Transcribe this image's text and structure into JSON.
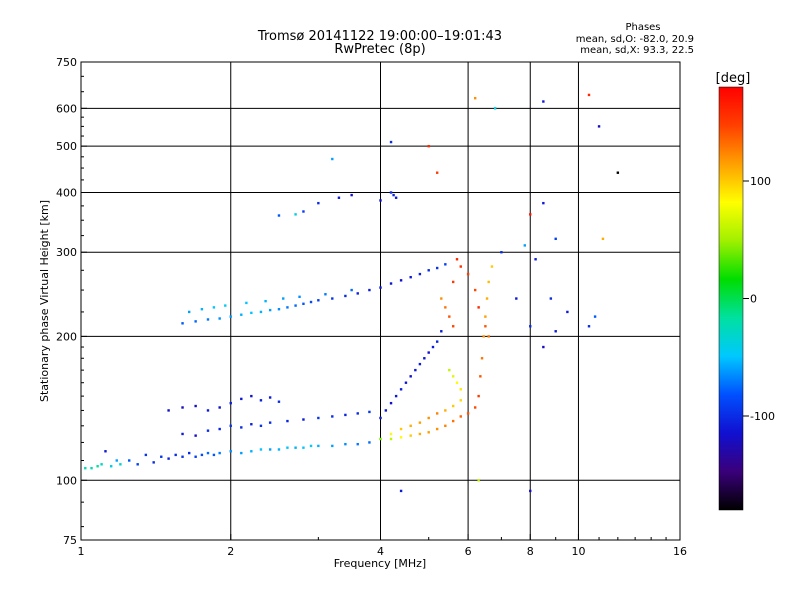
{
  "chart_data": {
    "type": "scatter",
    "title": "Tromsø 20141122 19:00:00–19:01:43",
    "subtitle": "RwPretec (8p)",
    "xlabel": "Frequency [MHz]",
    "ylabel": "Stationary phase Virtual Height [km]",
    "x_scale": "log",
    "y_scale": "log",
    "xlim": [
      1,
      16
    ],
    "ylim": [
      75,
      750
    ],
    "x_ticks": [
      "1",
      "2",
      "4",
      "6",
      "8",
      "10",
      "16"
    ],
    "x_tick_values": [
      1,
      2,
      4,
      6,
      8,
      10,
      16
    ],
    "y_ticks": [
      "75",
      "100",
      "200",
      "300",
      "400",
      "500",
      "600",
      "750"
    ],
    "y_tick_values": [
      75,
      100,
      200,
      300,
      400,
      500,
      600,
      750
    ],
    "grid": true,
    "info_box": {
      "heading": "Phases",
      "line1": "mean, sd,O: -82.0, 20.9",
      "line2": "mean, sd,X: 93.3, 22.5"
    },
    "colorbar": {
      "label": "[deg]",
      "ticks": [
        "100",
        "0",
        "-100"
      ],
      "tick_values": [
        100,
        0,
        -100
      ],
      "range": [
        -180,
        180
      ]
    },
    "color_stops": [
      "#000000",
      "#3a007a",
      "#1010d0",
      "#0050ff",
      "#00c8ff",
      "#00e0a0",
      "#00dd00",
      "#a0f000",
      "#ffff00",
      "#ffa000",
      "#ff4000",
      "#ff0000"
    ],
    "points": [
      [
        1.02,
        106,
        -20
      ],
      [
        1.05,
        106,
        -25
      ],
      [
        1.08,
        107,
        -15
      ],
      [
        1.1,
        108,
        -30
      ],
      [
        1.12,
        115,
        -110
      ],
      [
        1.15,
        107,
        -40
      ],
      [
        1.18,
        110,
        -60
      ],
      [
        1.2,
        108,
        -35
      ],
      [
        1.25,
        110,
        -80
      ],
      [
        1.3,
        108,
        -90
      ],
      [
        1.35,
        113,
        -95
      ],
      [
        1.4,
        109,
        -100
      ],
      [
        1.45,
        112,
        -95
      ],
      [
        1.5,
        111,
        -105
      ],
      [
        1.55,
        113,
        -100
      ],
      [
        1.6,
        112,
        -95
      ],
      [
        1.65,
        114,
        -100
      ],
      [
        1.7,
        112,
        -90
      ],
      [
        1.75,
        113,
        -85
      ],
      [
        1.8,
        114,
        -75
      ],
      [
        1.85,
        113,
        -80
      ],
      [
        1.9,
        114,
        -70
      ],
      [
        2.0,
        115,
        -65
      ],
      [
        2.1,
        114,
        -60
      ],
      [
        2.2,
        115,
        -55
      ],
      [
        2.3,
        116,
        -50
      ],
      [
        2.4,
        116,
        -60
      ],
      [
        2.5,
        116,
        -55
      ],
      [
        2.6,
        117,
        -50
      ],
      [
        2.7,
        117,
        -55
      ],
      [
        2.8,
        117,
        -50
      ],
      [
        2.9,
        118,
        -45
      ],
      [
        3.0,
        118,
        -55
      ],
      [
        3.2,
        118,
        -60
      ],
      [
        3.4,
        119,
        -65
      ],
      [
        3.6,
        119,
        -70
      ],
      [
        3.8,
        120,
        -75
      ],
      [
        4.0,
        122,
        40
      ],
      [
        4.2,
        122,
        60
      ],
      [
        4.4,
        123,
        80
      ],
      [
        4.6,
        124,
        100
      ],
      [
        4.8,
        125,
        110
      ],
      [
        5.0,
        126,
        115
      ],
      [
        5.2,
        128,
        120
      ],
      [
        5.4,
        130,
        125
      ],
      [
        5.6,
        133,
        130
      ],
      [
        5.8,
        136,
        135
      ],
      [
        6.0,
        138,
        140
      ],
      [
        6.2,
        142,
        145
      ],
      [
        6.3,
        150,
        150
      ],
      [
        6.35,
        165,
        140
      ],
      [
        6.4,
        180,
        130
      ],
      [
        6.45,
        200,
        120
      ],
      [
        6.5,
        220,
        115
      ],
      [
        6.55,
        240,
        110
      ],
      [
        6.6,
        260,
        105
      ],
      [
        6.7,
        280,
        100
      ],
      [
        1.6,
        125,
        -110
      ],
      [
        1.7,
        124,
        -115
      ],
      [
        1.8,
        127,
        -100
      ],
      [
        1.9,
        128,
        -105
      ],
      [
        2.0,
        130,
        -95
      ],
      [
        2.1,
        129,
        -100
      ],
      [
        2.2,
        131,
        -105
      ],
      [
        2.3,
        130,
        -95
      ],
      [
        2.4,
        132,
        -100
      ],
      [
        2.6,
        133,
        -105
      ],
      [
        2.8,
        134,
        -110
      ],
      [
        3.0,
        135,
        -95
      ],
      [
        3.2,
        136,
        -100
      ],
      [
        3.4,
        137,
        -105
      ],
      [
        3.6,
        138,
        -100
      ],
      [
        3.8,
        139,
        -95
      ],
      [
        1.8,
        140,
        -110
      ],
      [
        1.9,
        142,
        -115
      ],
      [
        2.0,
        145,
        -108
      ],
      [
        2.1,
        148,
        -112
      ],
      [
        2.2,
        150,
        -115
      ],
      [
        1.7,
        143,
        -118
      ],
      [
        1.6,
        142,
        -120
      ],
      [
        1.5,
        140,
        -115
      ],
      [
        2.3,
        147,
        -105
      ],
      [
        2.4,
        149,
        -110
      ],
      [
        2.5,
        146,
        -100
      ],
      [
        4.0,
        135,
        -110
      ],
      [
        4.1,
        140,
        -112
      ],
      [
        4.2,
        145,
        -115
      ],
      [
        4.3,
        150,
        -110
      ],
      [
        4.4,
        155,
        -108
      ],
      [
        4.5,
        160,
        -112
      ],
      [
        4.6,
        165,
        -115
      ],
      [
        4.7,
        170,
        -110
      ],
      [
        4.8,
        175,
        -108
      ],
      [
        4.9,
        180,
        -112
      ],
      [
        5.0,
        185,
        -115
      ],
      [
        5.1,
        190,
        -110
      ],
      [
        5.2,
        195,
        -105
      ],
      [
        5.3,
        205,
        -110
      ],
      [
        4.2,
        125,
        80
      ],
      [
        4.4,
        128,
        100
      ],
      [
        4.6,
        130,
        110
      ],
      [
        4.8,
        132,
        115
      ],
      [
        5.0,
        135,
        120
      ],
      [
        5.2,
        138,
        125
      ],
      [
        5.4,
        140,
        110
      ],
      [
        5.6,
        143,
        100
      ],
      [
        5.8,
        147,
        95
      ],
      [
        5.8,
        155,
        90
      ],
      [
        5.7,
        160,
        80
      ],
      [
        5.6,
        165,
        70
      ],
      [
        5.5,
        170,
        60
      ],
      [
        1.6,
        213,
        -80
      ],
      [
        1.7,
        215,
        -75
      ],
      [
        1.8,
        217,
        -70
      ],
      [
        1.9,
        218,
        -65
      ],
      [
        2.0,
        220,
        -60
      ],
      [
        2.1,
        222,
        -55
      ],
      [
        2.2,
        224,
        -50
      ],
      [
        2.3,
        225,
        -55
      ],
      [
        2.4,
        227,
        -60
      ],
      [
        2.5,
        228,
        -65
      ],
      [
        2.6,
        230,
        -70
      ],
      [
        2.7,
        232,
        -75
      ],
      [
        2.8,
        234,
        -80
      ],
      [
        2.9,
        236,
        -85
      ],
      [
        3.0,
        238,
        -90
      ],
      [
        3.2,
        240,
        -95
      ],
      [
        3.4,
        243,
        -100
      ],
      [
        3.6,
        246,
        -105
      ],
      [
        3.8,
        250,
        -108
      ],
      [
        4.0,
        253,
        -110
      ],
      [
        4.2,
        258,
        -112
      ],
      [
        4.4,
        262,
        -115
      ],
      [
        4.6,
        266,
        -110
      ],
      [
        4.8,
        270,
        -105
      ],
      [
        5.0,
        275,
        -100
      ],
      [
        5.2,
        278,
        -95
      ],
      [
        5.4,
        283,
        -90
      ],
      [
        1.65,
        225,
        -60
      ],
      [
        1.75,
        228,
        -55
      ],
      [
        1.85,
        230,
        -50
      ],
      [
        1.95,
        232,
        -45
      ],
      [
        2.15,
        235,
        -50
      ],
      [
        2.35,
        237,
        -55
      ],
      [
        2.55,
        240,
        -60
      ],
      [
        2.75,
        242,
        -65
      ],
      [
        3.1,
        245,
        -70
      ],
      [
        3.5,
        250,
        -75
      ],
      [
        5.3,
        240,
        120
      ],
      [
        5.4,
        230,
        130
      ],
      [
        5.5,
        220,
        140
      ],
      [
        5.6,
        210,
        145
      ],
      [
        5.6,
        260,
        150
      ],
      [
        5.7,
        290,
        160
      ],
      [
        5.8,
        280,
        155
      ],
      [
        6.0,
        270,
        150
      ],
      [
        6.2,
        250,
        145
      ],
      [
        6.3,
        230,
        160
      ],
      [
        6.5,
        210,
        140
      ],
      [
        6.6,
        200,
        130
      ],
      [
        2.5,
        358,
        -80
      ],
      [
        2.8,
        365,
        -90
      ],
      [
        3.0,
        380,
        -100
      ],
      [
        3.3,
        390,
        -110
      ],
      [
        3.5,
        395,
        -115
      ],
      [
        4.2,
        400,
        -100
      ],
      [
        4.25,
        395,
        -105
      ],
      [
        4.3,
        390,
        -110
      ],
      [
        4.0,
        385,
        -115
      ],
      [
        3.2,
        470,
        -60
      ],
      [
        4.2,
        510,
        -100
      ],
      [
        5.0,
        500,
        160
      ],
      [
        5.2,
        440,
        150
      ],
      [
        6.2,
        630,
        120
      ],
      [
        6.8,
        600,
        -40
      ],
      [
        8.5,
        620,
        -110
      ],
      [
        10.5,
        640,
        160
      ],
      [
        11.0,
        550,
        -120
      ],
      [
        12.0,
        440,
        -180
      ],
      [
        8.0,
        360,
        170
      ],
      [
        8.5,
        380,
        -110
      ],
      [
        9.0,
        320,
        -90
      ],
      [
        7.8,
        310,
        -60
      ],
      [
        8.2,
        290,
        -110
      ],
      [
        8.8,
        240,
        -100
      ],
      [
        9.5,
        225,
        -110
      ],
      [
        10.5,
        210,
        -100
      ],
      [
        10.8,
        220,
        -80
      ],
      [
        11.2,
        320,
        110
      ],
      [
        7.0,
        300,
        -100
      ],
      [
        7.5,
        240,
        -110
      ],
      [
        8.0,
        210,
        -100
      ],
      [
        8.5,
        190,
        -120
      ],
      [
        9.0,
        205,
        -110
      ],
      [
        4.4,
        95,
        -110
      ],
      [
        8.0,
        95,
        -120
      ],
      [
        6.3,
        100,
        60
      ],
      [
        2.7,
        360,
        -40
      ]
    ]
  }
}
